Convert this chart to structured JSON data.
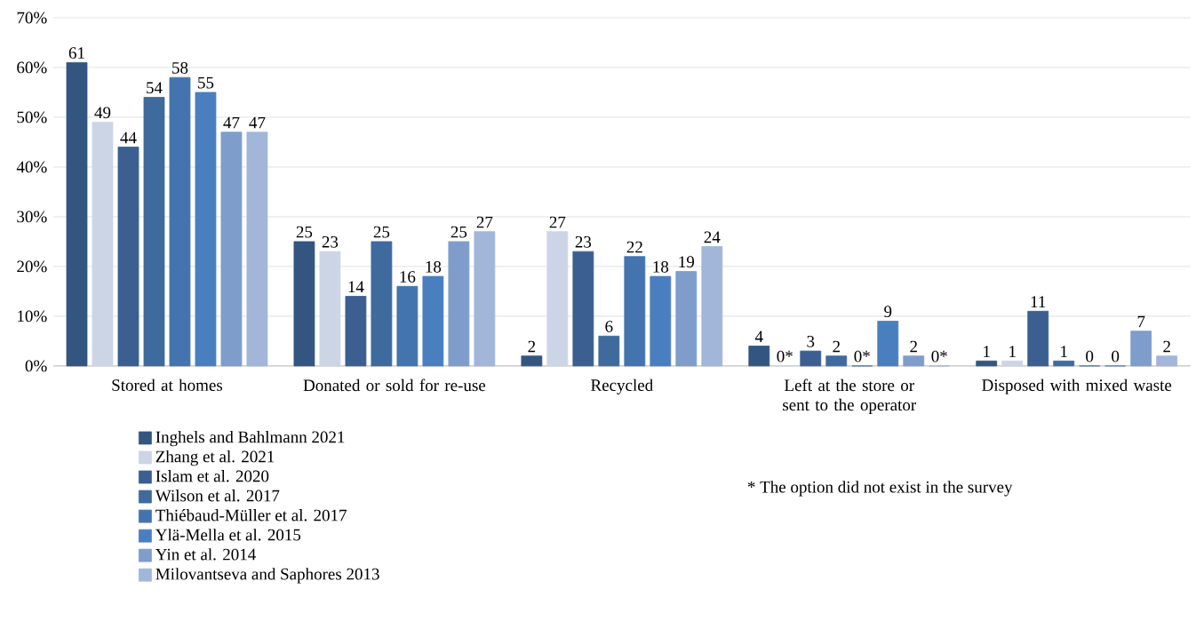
{
  "chart_data": {
    "type": "bar",
    "categories": [
      "Stored at homes",
      "Donated or sold for re-use",
      "Recycled",
      "Left at the store or sent to the operator",
      "Disposed with mixed waste"
    ],
    "series": [
      {
        "name": "Inghels and Bahlmann 2021",
        "color": "#335680",
        "values": [
          61,
          25,
          2,
          4,
          1
        ],
        "value_labels": [
          "61",
          "25",
          "2",
          "4",
          "1"
        ]
      },
      {
        "name": "Zhang et al. 2021",
        "color": "#ccd5e5",
        "values": [
          49,
          23,
          27,
          0,
          1
        ],
        "value_labels": [
          "49",
          "23",
          "27",
          "0*",
          "1"
        ]
      },
      {
        "name": "Islam et al. 2020",
        "color": "#3a5f90",
        "values": [
          44,
          14,
          23,
          3,
          11
        ],
        "value_labels": [
          "44",
          "14",
          "23",
          "3",
          "11"
        ]
      },
      {
        "name": "Wilson et al. 2017",
        "color": "#3f6a9e",
        "values": [
          54,
          25,
          6,
          2,
          1
        ],
        "value_labels": [
          "54",
          "25",
          "6",
          "2",
          "1"
        ]
      },
      {
        "name": "Thiébaud-Müller et al. 2017",
        "color": "#4474ae",
        "values": [
          58,
          16,
          22,
          0,
          0
        ],
        "value_labels": [
          "58",
          "16",
          "22",
          "0*",
          "0"
        ]
      },
      {
        "name": "Ylä-Mella et al. 2015",
        "color": "#4a7fbf",
        "values": [
          55,
          18,
          18,
          9,
          0
        ],
        "value_labels": [
          "55",
          "18",
          "18",
          "9",
          "0"
        ]
      },
      {
        "name": "Yin et al. 2014",
        "color": "#7f9dcb",
        "values": [
          47,
          25,
          19,
          2,
          7
        ],
        "value_labels": [
          "47",
          "25",
          "19",
          "2",
          "7"
        ]
      },
      {
        "name": "Milovantseva and Saphores 2013",
        "color": "#a1b6d9",
        "values": [
          47,
          27,
          24,
          0,
          2
        ],
        "value_labels": [
          "47",
          "27",
          "24",
          "0*",
          "2"
        ]
      }
    ],
    "ylim": [
      0,
      70
    ],
    "yticks": [
      {
        "value": 0,
        "label": "0%"
      },
      {
        "value": 10,
        "label": "10%"
      },
      {
        "value": 20,
        "label": "20%"
      },
      {
        "value": 30,
        "label": "30%"
      },
      {
        "value": 40,
        "label": "40%"
      },
      {
        "value": 50,
        "label": "50%"
      },
      {
        "value": 60,
        "label": "60%"
      },
      {
        "value": 70,
        "label": "70%"
      }
    ],
    "grid": "y",
    "legend": "bottom left",
    "annotations": [
      "*  The option did not exist in the survey"
    ]
  }
}
